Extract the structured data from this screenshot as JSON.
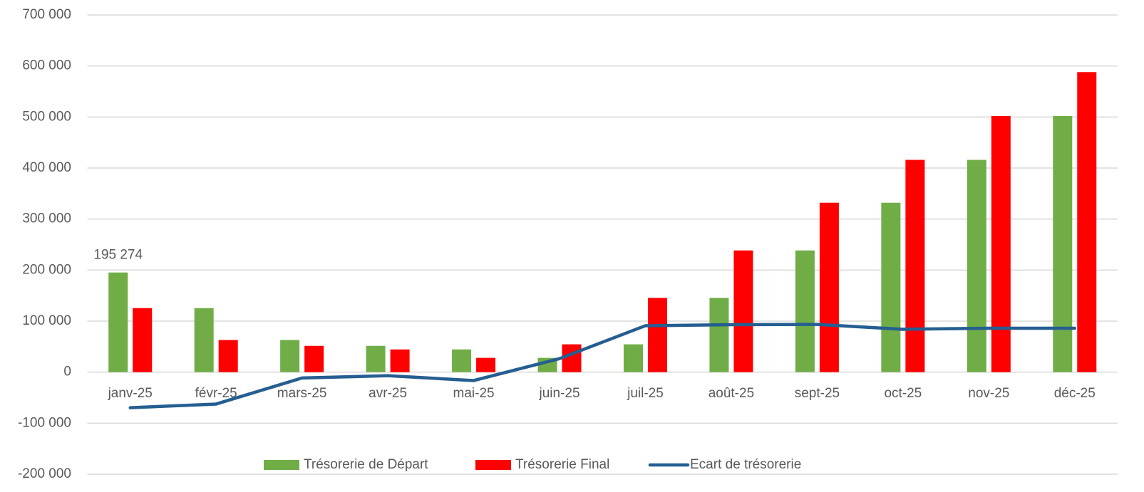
{
  "chart_data": {
    "type": "bar-line",
    "categories": [
      "janv-25",
      "févr-25",
      "mars-25",
      "avr-25",
      "mai-25",
      "juin-25",
      "juil-25",
      "août-25",
      "sept-25",
      "oct-25",
      "nov-25",
      "déc-25"
    ],
    "series": [
      {
        "name": "Trésorerie de Départ",
        "type": "bar",
        "color": "#70ad47",
        "values": [
          195274,
          125500,
          63000,
          51500,
          44500,
          28000,
          54500,
          145500,
          238500,
          332000,
          416000,
          502000
        ],
        "value_labels": [
          "195 274",
          null,
          null,
          null,
          null,
          null,
          null,
          null,
          null,
          null,
          null,
          null
        ]
      },
      {
        "name": "Trésorerie Final",
        "type": "bar",
        "color": "#ff0000",
        "values": [
          125500,
          63000,
          51500,
          44500,
          28000,
          54500,
          145500,
          238500,
          332000,
          416000,
          502000,
          588000
        ]
      },
      {
        "name": "Ecart de trésorerie",
        "type": "line",
        "color": "#255e91",
        "values": [
          -69774,
          -62500,
          -11500,
          -7000,
          -16500,
          26500,
          91000,
          93000,
          93500,
          84000,
          86000,
          86000
        ]
      }
    ],
    "ylim": [
      -200000,
      700000
    ],
    "yticks": [
      {
        "value": -200000,
        "label": "-200 000"
      },
      {
        "value": -100000,
        "label": "-100 000"
      },
      0,
      {
        "value": 100000,
        "label": "100 000"
      },
      {
        "value": 200000,
        "label": "200 000"
      },
      {
        "value": 300000,
        "label": "300 000"
      },
      {
        "value": 400000,
        "label": "400 000"
      },
      {
        "value": 500000,
        "label": "500 000"
      },
      {
        "value": 600000,
        "label": "600 000"
      },
      {
        "value": 700000,
        "label": "700 000"
      }
    ],
    "grid": true,
    "legend": "bottom"
  }
}
